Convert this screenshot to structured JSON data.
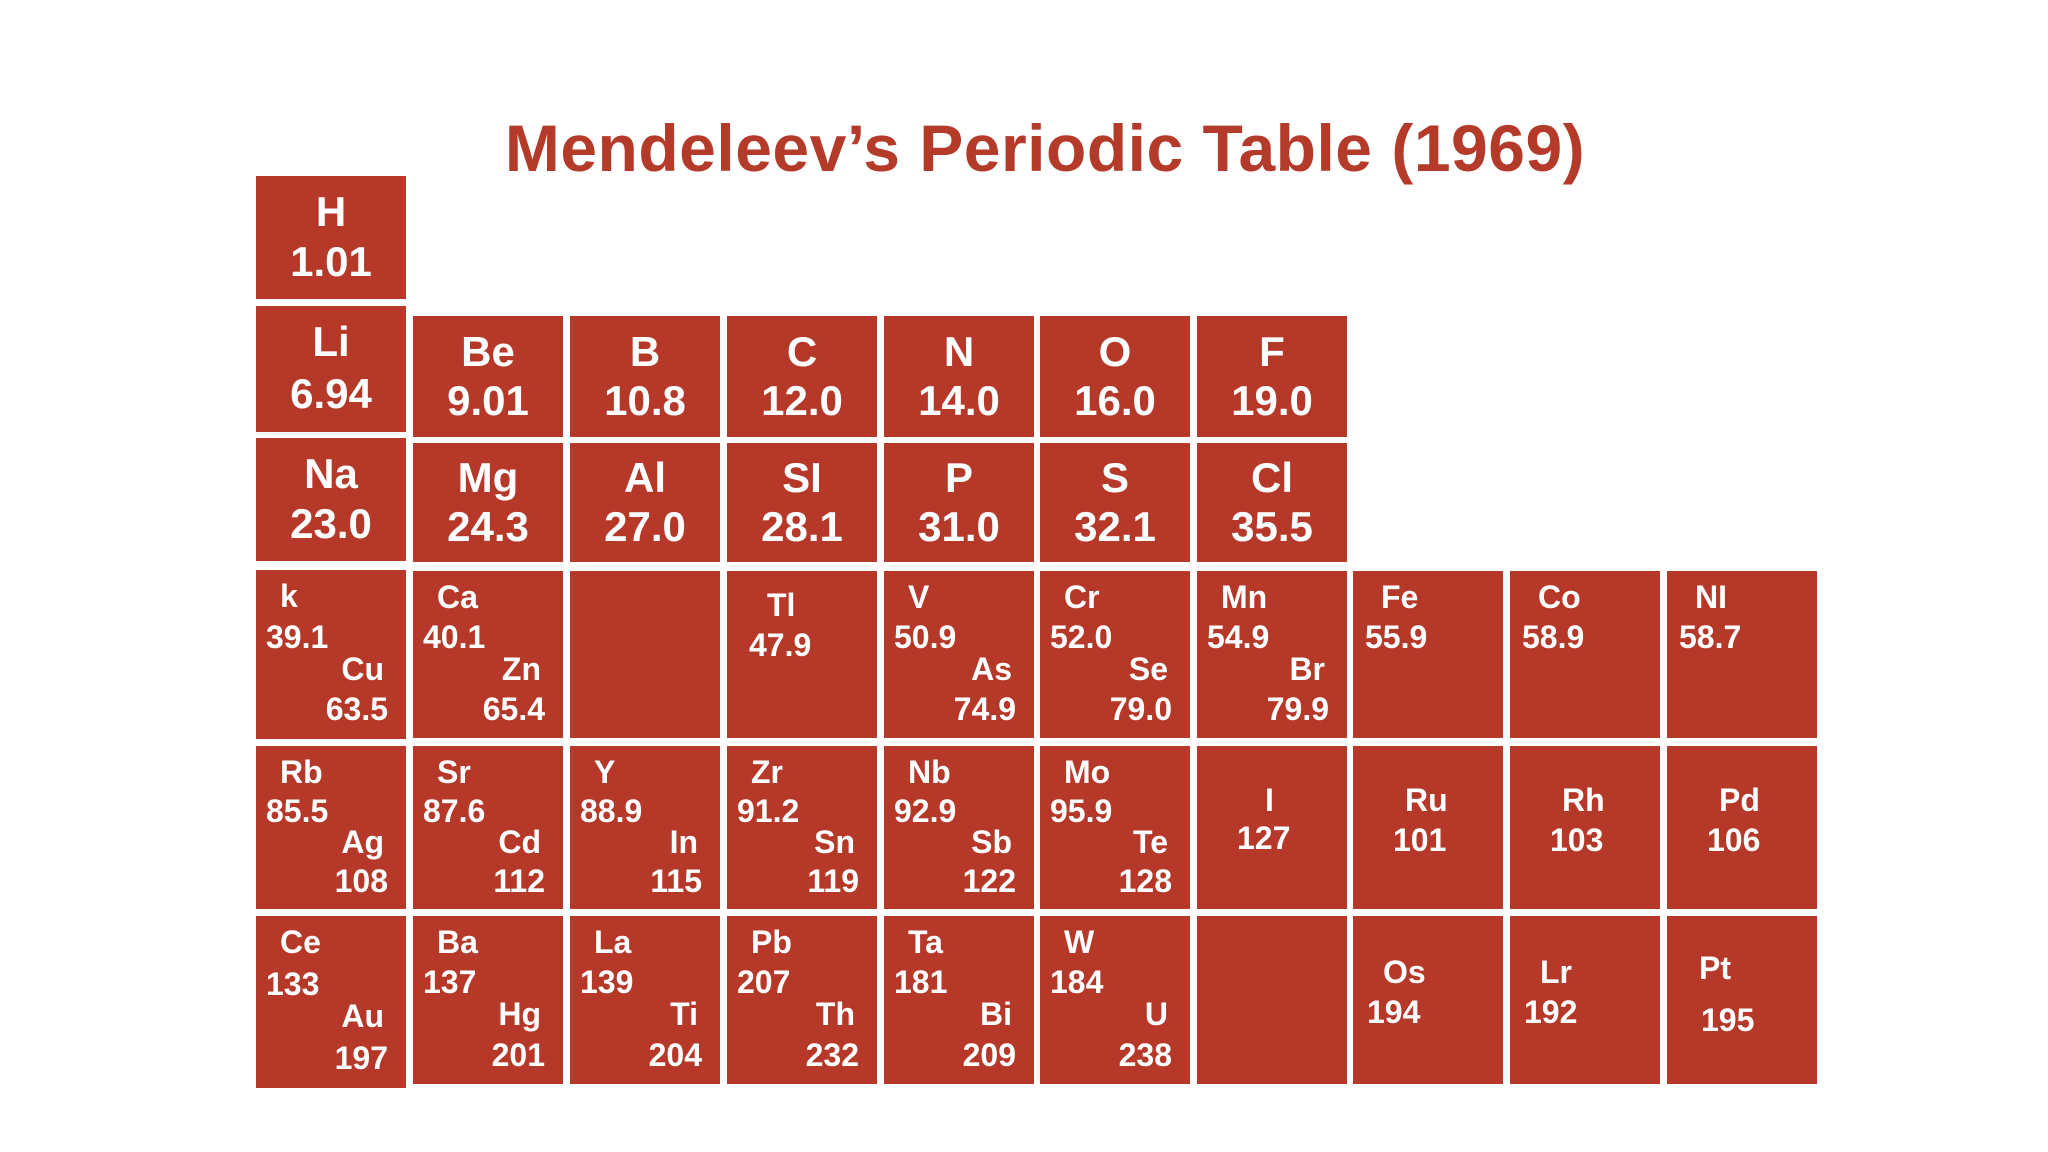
{
  "title": "Mendeleev’s Periodic Table (1969)",
  "colors": {
    "title": "#b43a2a",
    "cell_background": "#b53829",
    "cell_text": "#ffffff",
    "page_background": "#ffffff"
  },
  "rows": [
    {
      "cells": [
        {
          "symbol": "H",
          "mass": "1.01"
        }
      ]
    },
    {
      "cells": [
        {
          "symbol": "Li",
          "mass": "6.94"
        },
        {
          "symbol": "Be",
          "mass": "9.01"
        },
        {
          "symbol": "B",
          "mass": "10.8"
        },
        {
          "symbol": "C",
          "mass": "12.0"
        },
        {
          "symbol": "N",
          "mass": "14.0"
        },
        {
          "symbol": "O",
          "mass": "16.0"
        },
        {
          "symbol": "F",
          "mass": "19.0"
        }
      ]
    },
    {
      "cells": [
        {
          "symbol": "Na",
          "mass": "23.0"
        },
        {
          "symbol": "Mg",
          "mass": "24.3"
        },
        {
          "symbol": "Al",
          "mass": "27.0"
        },
        {
          "symbol": "SI",
          "mass": "28.1"
        },
        {
          "symbol": "P",
          "mass": "31.0"
        },
        {
          "symbol": "S",
          "mass": "32.1"
        },
        {
          "symbol": "Cl",
          "mass": "35.5"
        }
      ]
    },
    {
      "cells": [
        {
          "symbol": "k",
          "mass": "39.1",
          "symbol2": "Cu",
          "mass2": "63.5"
        },
        {
          "symbol": "Ca",
          "mass": "40.1",
          "symbol2": "Zn",
          "mass2": "65.4"
        },
        {
          "empty": true
        },
        {
          "symbol": "Tl",
          "mass": "47.9"
        },
        {
          "symbol": "V",
          "mass": "50.9",
          "symbol2": "As",
          "mass2": "74.9"
        },
        {
          "symbol": "Cr",
          "mass": "52.0",
          "symbol2": "Se",
          "mass2": "79.0"
        },
        {
          "symbol": "Mn",
          "mass": "54.9",
          "symbol2": "Br",
          "mass2": "79.9"
        },
        {
          "symbol": "Fe",
          "mass": "55.9"
        },
        {
          "symbol": "Co",
          "mass": "58.9"
        },
        {
          "symbol": "NI",
          "mass": "58.7"
        }
      ]
    },
    {
      "cells": [
        {
          "symbol": "Rb",
          "mass": "85.5",
          "symbol2": "Ag",
          "mass2": "108"
        },
        {
          "symbol": "Sr",
          "mass": "87.6",
          "symbol2": "Cd",
          "mass2": "112"
        },
        {
          "symbol": "Y",
          "mass": "88.9",
          "symbol2": "In",
          "mass2": "115"
        },
        {
          "symbol": "Zr",
          "mass": "91.2",
          "symbol2": "Sn",
          "mass2": "119"
        },
        {
          "symbol": "Nb",
          "mass": "92.9",
          "symbol2": "Sb",
          "mass2": "122"
        },
        {
          "symbol": "Mo",
          "mass": "95.9",
          "symbol2": "Te",
          "mass2": "128"
        },
        {
          "symbol": "I",
          "mass": "127"
        },
        {
          "symbol": "Ru",
          "mass": "101"
        },
        {
          "symbol": "Rh",
          "mass": "103"
        },
        {
          "symbol": "Pd",
          "mass": "106"
        }
      ]
    },
    {
      "cells": [
        {
          "symbol": "Ce",
          "mass": "133",
          "symbol2": "Au",
          "mass2": "197"
        },
        {
          "symbol": "Ba",
          "mass": "137",
          "symbol2": "Hg",
          "mass2": "201"
        },
        {
          "symbol": "La",
          "mass": "139",
          "symbol2": "Ti",
          "mass2": "204"
        },
        {
          "symbol": "Pb",
          "mass": "207",
          "symbol2": "Th",
          "mass2": "232"
        },
        {
          "symbol": "Ta",
          "mass": "181",
          "symbol2": "Bi",
          "mass2": "209"
        },
        {
          "symbol": "W",
          "mass": "184",
          "symbol2": "U",
          "mass2": "238"
        },
        {
          "empty": true
        },
        {
          "symbol": "Os",
          "mass": "194"
        },
        {
          "symbol": "Lr",
          "mass": "192"
        },
        {
          "symbol": "Pt",
          "mass": "195"
        }
      ]
    }
  ]
}
